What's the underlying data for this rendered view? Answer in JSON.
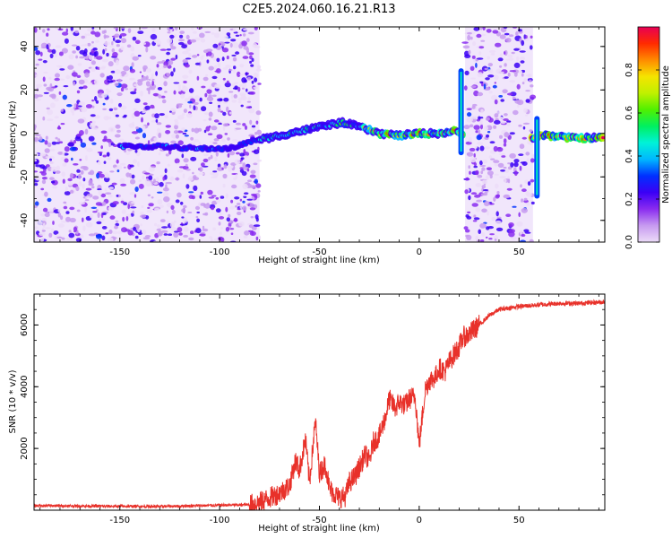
{
  "title": "C2E5.2024.060.16.21.R13",
  "chart_data": [
    {
      "type": "heatmap",
      "xlabel": "Height of straight line (km)",
      "ylabel": "Frequency (Hz)",
      "xlim": [
        -193,
        93
      ],
      "ylim": [
        -50,
        49
      ],
      "x_ticks": [
        -150,
        -100,
        -50,
        0,
        50
      ],
      "x_tick_labels": [
        "-150",
        "-100",
        "-50",
        "0",
        "50"
      ],
      "y_ticks": [
        -40,
        -20,
        0,
        20,
        40
      ],
      "y_tick_labels": [
        "-40",
        "-20",
        "0",
        "20",
        "40"
      ],
      "noise_regions": [
        [
          -193,
          -80
        ],
        [
          23,
          57
        ]
      ],
      "ridge": {
        "x": [
          -150,
          -130,
          -110,
          -95,
          -82,
          -75,
          -65,
          -55,
          -45,
          -38,
          -30,
          -20,
          -10,
          0,
          10,
          18,
          22,
          26,
          40,
          56,
          60,
          65,
          75,
          93
        ],
        "y": [
          -6,
          -6,
          -7,
          -7,
          -3,
          -2,
          0,
          2,
          4,
          5,
          3,
          0,
          -1,
          0,
          0,
          1,
          0,
          -1,
          -2,
          -2,
          -1,
          -1,
          -2,
          -2
        ]
      },
      "vertical_features": [
        {
          "x": 21,
          "y_range": [
            -10,
            30
          ]
        },
        {
          "x": 59,
          "y_range": [
            -30,
            8
          ]
        }
      ],
      "colorbar": {
        "label": "Normalized spectral amplitude",
        "range": [
          0.0,
          1.0
        ],
        "ticks": [
          0.0,
          0.2,
          0.4,
          0.6,
          0.8
        ],
        "tick_labels": [
          "0.0",
          "0.2",
          "0.4",
          "0.6",
          "0.8"
        ],
        "colors": [
          "#ecdcf8",
          "#c79af0",
          "#8a2cf0",
          "#3b00f5",
          "#0030ff",
          "#00b7ff",
          "#00f2d8",
          "#00f060",
          "#50f000",
          "#c0f000",
          "#f5e400",
          "#ff8a00",
          "#ff2a00",
          "#e80055"
        ]
      }
    },
    {
      "type": "line",
      "xlabel": "Height of straight line (km)",
      "ylabel": "SNR (10 * v/v)",
      "xlim": [
        -193,
        93
      ],
      "ylim": [
        0,
        7000
      ],
      "x_ticks": [
        -150,
        -100,
        -50,
        0,
        50
      ],
      "x_tick_labels": [
        "-150",
        "-100",
        "-50",
        "0",
        "50"
      ],
      "y_ticks": [
        2000,
        4000,
        6000
      ],
      "y_tick_labels": [
        "2000",
        "4000",
        "6000"
      ],
      "color": "#e8312a",
      "x": [
        -193,
        -160,
        -130,
        -100,
        -85,
        -80,
        -75,
        -70,
        -65,
        -62,
        -60,
        -57,
        -55,
        -52,
        -50,
        -47,
        -45,
        -42,
        -40,
        -37,
        -35,
        -32,
        -30,
        -27,
        -25,
        -23,
        -20,
        -17,
        -15,
        -12,
        -10,
        -7,
        -5,
        -2,
        0,
        3,
        5,
        8,
        10,
        13,
        15,
        18,
        20,
        22,
        25,
        30,
        35,
        40,
        50,
        60,
        70,
        80,
        93
      ],
      "y": [
        150,
        130,
        120,
        160,
        180,
        250,
        400,
        550,
        800,
        1600,
        1300,
        2300,
        900,
        2900,
        1200,
        1500,
        700,
        500,
        400,
        450,
        900,
        1100,
        1400,
        1800,
        1600,
        2200,
        2400,
        3000,
        3600,
        3300,
        3500,
        3400,
        3600,
        3700,
        2100,
        3900,
        4200,
        4300,
        4600,
        4500,
        4800,
        5100,
        5300,
        5600,
        5700,
        6000,
        6300,
        6500,
        6600,
        6650,
        6700,
        6700,
        6750
      ]
    }
  ]
}
